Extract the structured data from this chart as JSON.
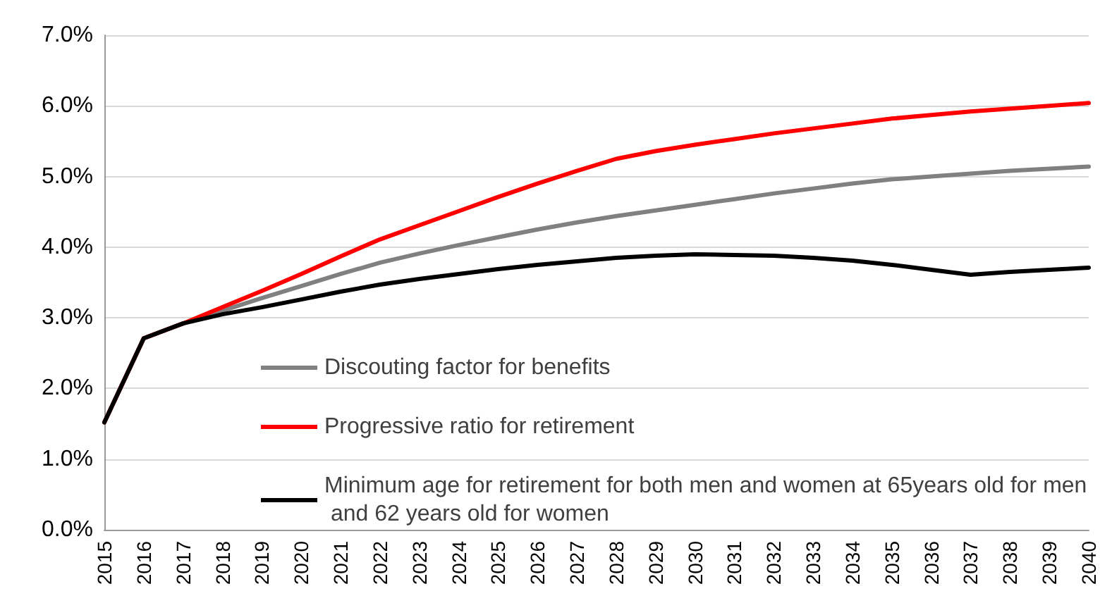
{
  "chart_data": {
    "type": "line",
    "categories": [
      "2015",
      "2016",
      "2017",
      "2018",
      "2019",
      "2020",
      "2021",
      "2022",
      "2023",
      "2024",
      "2025",
      "2026",
      "2027",
      "2028",
      "2029",
      "2030",
      "2031",
      "2032",
      "2033",
      "2034",
      "2035",
      "2036",
      "2037",
      "2038",
      "2039",
      "2040"
    ],
    "series": [
      {
        "name": "Discouting factor for benefits",
        "color": "#808080",
        "values": [
          1.52,
          2.71,
          2.92,
          3.1,
          3.28,
          3.45,
          3.62,
          3.78,
          3.91,
          4.03,
          4.14,
          4.25,
          4.35,
          4.44,
          4.52,
          4.6,
          4.68,
          4.76,
          4.83,
          4.9,
          4.96,
          5.0,
          5.04,
          5.08,
          5.11,
          5.14
        ]
      },
      {
        "name": "Progressive ratio for retirement",
        "color": "#ff0000",
        "values": [
          1.52,
          2.71,
          2.92,
          3.15,
          3.38,
          3.62,
          3.87,
          4.11,
          4.31,
          4.51,
          4.71,
          4.9,
          5.08,
          5.25,
          5.36,
          5.45,
          5.53,
          5.61,
          5.68,
          5.75,
          5.82,
          5.87,
          5.92,
          5.96,
          6.0,
          6.04
        ]
      },
      {
        "name": "Minimum age for retirement for both men and women at 65years old for men and 62 years old for women",
        "color": "#000000",
        "values": [
          1.52,
          2.71,
          2.92,
          3.05,
          3.15,
          3.26,
          3.37,
          3.47,
          3.55,
          3.62,
          3.69,
          3.75,
          3.8,
          3.85,
          3.88,
          3.9,
          3.89,
          3.88,
          3.85,
          3.81,
          3.75,
          3.68,
          3.61,
          3.65,
          3.68,
          3.71
        ]
      }
    ],
    "ylim": [
      0,
      7
    ],
    "yticks": [
      {
        "value": 0,
        "label": "0.0%"
      },
      {
        "value": 1,
        "label": "1.0%"
      },
      {
        "value": 2,
        "label": "2.0%"
      },
      {
        "value": 3,
        "label": "3.0%"
      },
      {
        "value": 4,
        "label": "4.0%"
      },
      {
        "value": 5,
        "label": "5.0%"
      },
      {
        "value": 6,
        "label": "6.0%"
      },
      {
        "value": 7,
        "label": "7.0%"
      }
    ],
    "grid": "y",
    "legend": "bottom",
    "marker": "none",
    "line_style": "solid"
  }
}
